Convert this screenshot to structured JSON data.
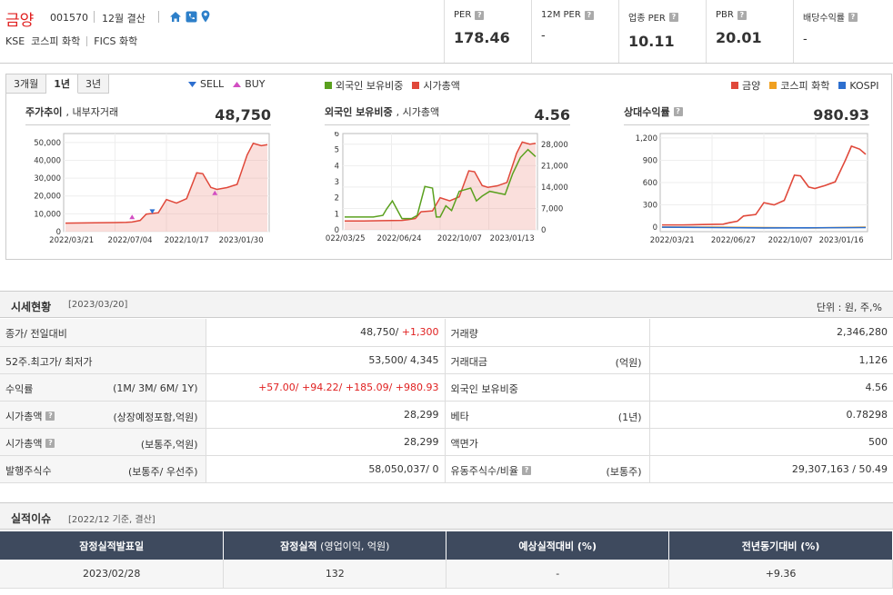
{
  "header": {
    "name": "금양",
    "code": "001570",
    "settlement": "12월 결산",
    "market": "KSE",
    "index": "코스피 화학",
    "fics": "FICS 화학",
    "metrics": [
      {
        "label": "PER",
        "value": "178.46"
      },
      {
        "label": "12M PER",
        "value": "-"
      },
      {
        "label": "업종 PER",
        "value": "10.11"
      },
      {
        "label": "PBR",
        "value": "20.01"
      },
      {
        "label": "배당수익률",
        "value": "-"
      }
    ]
  },
  "chart_tabs": [
    "3개월",
    "1년",
    "3년"
  ],
  "chart_tab_active": 1,
  "legend_trade": {
    "sell": "SELL",
    "buy": "BUY"
  },
  "legend_mid": [
    {
      "label": "외국인 보유비중",
      "color": "#5aa01e"
    },
    {
      "label": "시가총액",
      "color": "#e0483a"
    }
  ],
  "legend_right": [
    {
      "label": "금양",
      "color": "#e0483a"
    },
    {
      "label": "코스피 화학",
      "color": "#f0a020"
    },
    {
      "label": "KOSPI",
      "color": "#2d6fcf"
    }
  ],
  "panels": {
    "price": {
      "title": "주가추이",
      "subtitle": ", 내부자거래",
      "value": "48,750"
    },
    "foreign": {
      "title": "외국인 보유비중",
      "subtitle": ", 시가총액",
      "value": "4.56"
    },
    "relative": {
      "title": "상대수익률",
      "value": "980.93"
    }
  },
  "chart_data": [
    {
      "type": "area",
      "title": "주가추이",
      "x_ticks": [
        "2022/03/21",
        "2022/07/04",
        "2022/10/17",
        "2023/01/30"
      ],
      "y_ticks": [
        "0",
        "10,000",
        "20,000",
        "30,000",
        "40,000",
        "50,000"
      ],
      "ylim": [
        0,
        55000
      ],
      "x_positions": [
        0,
        0.1,
        0.2,
        0.3,
        0.33,
        0.37,
        0.4,
        0.46,
        0.5,
        0.55,
        0.6,
        0.65,
        0.68,
        0.72,
        0.75,
        0.8,
        0.85,
        0.9,
        0.93,
        0.97,
        1
      ],
      "values": [
        4800,
        4900,
        5000,
        5200,
        5400,
        6300,
        9800,
        10600,
        18000,
        16000,
        18500,
        33000,
        32500,
        24800,
        23700,
        24700,
        26500,
        43000,
        49500,
        48200,
        48750
      ],
      "markers": [
        {
          "type": "BUY",
          "x": 0.33,
          "y": 8000
        },
        {
          "type": "SELL",
          "x": 0.43,
          "y": 11500
        },
        {
          "type": "BUY",
          "x": 0.74,
          "y": 21500
        }
      ]
    },
    {
      "type": "line",
      "title": "외국인 보유비중",
      "x_ticks": [
        "2022/03/25",
        "2022/06/24",
        "2022/10/07",
        "2023/01/13"
      ],
      "y_left_ticks": [
        "0",
        "1",
        "2",
        "3",
        "4",
        "5",
        "6"
      ],
      "y_right_ticks": [
        "0",
        "7,000",
        "14,000",
        "21,000",
        "28,000"
      ],
      "series": [
        {
          "name": "외국인 보유비중",
          "x": [
            0,
            0.08,
            0.15,
            0.2,
            0.22,
            0.25,
            0.3,
            0.35,
            0.38,
            0.42,
            0.46,
            0.48,
            0.5,
            0.53,
            0.56,
            0.6,
            0.63,
            0.66,
            0.69,
            0.72,
            0.76,
            0.8,
            0.84,
            0.88,
            0.92,
            0.96,
            1
          ],
          "values": [
            0.8,
            0.8,
            0.8,
            0.9,
            1.3,
            1.8,
            0.7,
            0.7,
            0.9,
            2.7,
            2.6,
            0.8,
            0.8,
            1.5,
            1.2,
            2.4,
            2.5,
            2.6,
            1.8,
            2.1,
            2.4,
            2.3,
            2.2,
            3.5,
            4.5,
            5.0,
            4.56
          ]
        },
        {
          "name": "시가총액",
          "x": [
            0,
            0.1,
            0.2,
            0.3,
            0.33,
            0.37,
            0.4,
            0.46,
            0.5,
            0.55,
            0.6,
            0.65,
            0.68,
            0.72,
            0.75,
            0.8,
            0.85,
            0.9,
            0.93,
            0.97,
            1
          ],
          "values": [
            2900,
            2900,
            3000,
            3100,
            3300,
            3700,
            5900,
            6200,
            10500,
            9500,
            10800,
            19300,
            19000,
            14500,
            13900,
            14400,
            15500,
            25000,
            28700,
            28000,
            28299
          ]
        }
      ]
    },
    {
      "type": "line",
      "title": "상대수익률",
      "x_ticks": [
        "2022/03/21",
        "2022/06/27",
        "2022/10/07",
        "2023/01/16"
      ],
      "y_ticks": [
        "0",
        "300",
        "600",
        "900",
        "1,200"
      ],
      "ylim": [
        -60,
        1260
      ],
      "series": [
        {
          "name": "금양",
          "x": [
            0,
            0.1,
            0.2,
            0.3,
            0.33,
            0.37,
            0.4,
            0.46,
            0.5,
            0.55,
            0.6,
            0.65,
            0.68,
            0.72,
            0.75,
            0.8,
            0.85,
            0.9,
            0.93,
            0.97,
            1
          ],
          "values": [
            30,
            30,
            35,
            40,
            60,
            80,
            150,
            170,
            330,
            300,
            360,
            700,
            690,
            540,
            520,
            560,
            610,
            900,
            1090,
            1050,
            980.93
          ]
        },
        {
          "name": "코스피 화학",
          "x": [
            0,
            0.25,
            0.5,
            0.75,
            1
          ],
          "values": [
            0,
            0,
            -5,
            -10,
            0
          ]
        },
        {
          "name": "KOSPI",
          "x": [
            0,
            0.25,
            0.5,
            0.75,
            1
          ],
          "values": [
            0,
            -5,
            -10,
            -8,
            -5
          ]
        }
      ]
    }
  ],
  "market_section": {
    "title": "시세현황",
    "date": "[2023/03/20]",
    "unit": "단위 : 원, 주,%",
    "rows": [
      {
        "l1": "종가/ 전일대비",
        "l1n": "",
        "v1a": "48,750/ ",
        "v1b": "+1,300",
        "l2": "거래량",
        "l2n": "",
        "v2": "2,346,280",
        "q1": false,
        "q2": false
      },
      {
        "l1": "52주.최고가/ 최저가",
        "l1n": "",
        "v1a": "53,500/ 4,345",
        "v1b": "",
        "l2": "거래대금",
        "l2n": "(억원)",
        "v2": "1,126",
        "q1": false,
        "q2": false
      },
      {
        "l1": "수익률",
        "l1n": "(1M/ 3M/ 6M/ 1Y)",
        "v1a": "",
        "v1b": "+57.00/ +94.22/ +185.09/ +980.93",
        "l2": "외국인 보유비중",
        "l2n": "",
        "v2": "4.56",
        "q1": false,
        "q2": false
      },
      {
        "l1": "시가총액",
        "l1n": "(상장예정포함,억원)",
        "v1a": "28,299",
        "v1b": "",
        "l2": "베타",
        "l2n": "(1년)",
        "v2": "0.78298",
        "q1": true,
        "q2": false
      },
      {
        "l1": "시가총액",
        "l1n": "(보통주,억원)",
        "v1a": "28,299",
        "v1b": "",
        "l2": "액면가",
        "l2n": "",
        "v2": "500",
        "q1": true,
        "q2": false
      },
      {
        "l1": "발행주식수",
        "l1n": "(보통주/ 우선주)",
        "v1a": "58,050,037/ 0",
        "v1b": "",
        "l2": "유동주식수/비율",
        "l2n": "(보통주)",
        "v2": "29,307,163 / 50.49",
        "q1": false,
        "q2": true
      }
    ]
  },
  "perf_section": {
    "title": "실적이슈",
    "date": "[2022/12 기준, 결산]",
    "headers": [
      {
        "b": "잠정실적발표일",
        "n": ""
      },
      {
        "b": "잠정실적",
        "n": " (영업이익, 억원)"
      },
      {
        "b": "예상실적대비 (%)",
        "n": ""
      },
      {
        "b": "전년동기대비 (%)",
        "n": ""
      }
    ],
    "row": [
      "2023/02/28",
      "132",
      "-",
      "+9.36"
    ]
  }
}
